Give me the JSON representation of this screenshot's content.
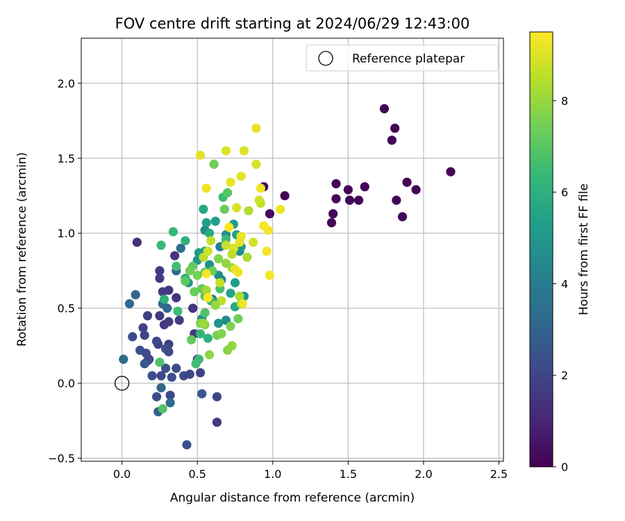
{
  "chart_data": {
    "type": "scatter",
    "title": "FOV centre drift starting at 2024/06/29 12:43:00",
    "xlabel": "Angular distance from reference (arcmin)",
    "ylabel": "Rotation from reference (arcmin)",
    "xlim": [
      -0.27,
      2.53
    ],
    "ylim": [
      -0.52,
      2.3
    ],
    "xticks": [
      0.0,
      0.5,
      1.0,
      1.5,
      2.0,
      2.5
    ],
    "xtick_labels": [
      "0.0",
      "0.5",
      "1.0",
      "1.5",
      "2.0",
      "2.5"
    ],
    "yticks": [
      -0.5,
      0.0,
      0.5,
      1.0,
      1.5,
      2.0
    ],
    "ytick_labels": [
      "−0.5",
      "0.0",
      "0.5",
      "1.0",
      "1.5",
      "2.0"
    ],
    "grid": true,
    "legend": {
      "placement": "top-right",
      "entries": [
        "Reference platepar"
      ]
    },
    "reference_point": {
      "x": 0.0,
      "y": 0.0
    },
    "colorbar": {
      "label": "Hours from first FF file",
      "range": [
        0,
        9.5
      ],
      "ticks": [
        0,
        2,
        4,
        6,
        8
      ],
      "tick_labels": [
        "0",
        "2",
        "4",
        "6",
        "8"
      ],
      "colormap": [
        "#440154",
        "#482878",
        "#3e4989",
        "#31688e",
        "#26828e",
        "#1f9e89",
        "#35b779",
        "#6ece58",
        "#b5de2b",
        "#fde725"
      ]
    },
    "points": [
      {
        "x": 1.74,
        "y": 1.83,
        "h": 0.1
      },
      {
        "x": 1.81,
        "y": 1.7,
        "h": 0.1
      },
      {
        "x": 1.79,
        "y": 1.62,
        "h": 0.1
      },
      {
        "x": 2.18,
        "y": 1.41,
        "h": 0.1
      },
      {
        "x": 1.89,
        "y": 1.34,
        "h": 0.1
      },
      {
        "x": 1.95,
        "y": 1.29,
        "h": 0.1
      },
      {
        "x": 1.61,
        "y": 1.31,
        "h": 0.1
      },
      {
        "x": 1.5,
        "y": 1.29,
        "h": 0.1
      },
      {
        "x": 1.42,
        "y": 1.33,
        "h": 0.1
      },
      {
        "x": 1.42,
        "y": 1.23,
        "h": 0.1
      },
      {
        "x": 1.51,
        "y": 1.22,
        "h": 0.1
      },
      {
        "x": 1.57,
        "y": 1.22,
        "h": 0.1
      },
      {
        "x": 1.82,
        "y": 1.22,
        "h": 0.1
      },
      {
        "x": 1.4,
        "y": 1.13,
        "h": 0.1
      },
      {
        "x": 1.39,
        "y": 1.07,
        "h": 0.1
      },
      {
        "x": 1.86,
        "y": 1.11,
        "h": 0.1
      },
      {
        "x": 1.08,
        "y": 1.25,
        "h": 0.1
      },
      {
        "x": 0.94,
        "y": 1.31,
        "h": 0.2
      },
      {
        "x": 0.98,
        "y": 1.13,
        "h": 0.3
      },
      {
        "x": 0.1,
        "y": 0.94,
        "h": 1.3
      },
      {
        "x": 0.35,
        "y": 0.85,
        "h": 1.4
      },
      {
        "x": 0.25,
        "y": 0.75,
        "h": 1.6
      },
      {
        "x": 0.25,
        "y": 0.7,
        "h": 1.6
      },
      {
        "x": 0.31,
        "y": 0.62,
        "h": 1.5
      },
      {
        "x": 0.27,
        "y": 0.61,
        "h": 1.7
      },
      {
        "x": 0.36,
        "y": 0.57,
        "h": 1.5
      },
      {
        "x": 0.25,
        "y": 0.45,
        "h": 1.6
      },
      {
        "x": 0.17,
        "y": 0.45,
        "h": 1.8
      },
      {
        "x": 0.31,
        "y": 0.41,
        "h": 1.7
      },
      {
        "x": 0.28,
        "y": 0.39,
        "h": 1.6
      },
      {
        "x": 0.38,
        "y": 0.42,
        "h": 1.7
      },
      {
        "x": 0.14,
        "y": 0.37,
        "h": 1.9
      },
      {
        "x": 0.15,
        "y": 0.32,
        "h": 2.0
      },
      {
        "x": 0.07,
        "y": 0.31,
        "h": 2.1
      },
      {
        "x": 0.31,
        "y": 0.26,
        "h": 1.8
      },
      {
        "x": 0.23,
        "y": 0.28,
        "h": 2.0
      },
      {
        "x": 0.24,
        "y": 0.26,
        "h": 2.0
      },
      {
        "x": 0.12,
        "y": 0.22,
        "h": 2.4
      },
      {
        "x": 0.16,
        "y": 0.2,
        "h": 2.2
      },
      {
        "x": 0.18,
        "y": 0.16,
        "h": 2.0
      },
      {
        "x": 0.17,
        "y": 0.15,
        "h": 2.1
      },
      {
        "x": 0.15,
        "y": 0.13,
        "h": 2.6
      },
      {
        "x": 0.29,
        "y": 0.23,
        "h": 2.4
      },
      {
        "x": 0.31,
        "y": 0.21,
        "h": 2.2
      },
      {
        "x": 0.29,
        "y": 0.1,
        "h": 2.4
      },
      {
        "x": 0.2,
        "y": 0.05,
        "h": 2.3
      },
      {
        "x": 0.26,
        "y": 0.05,
        "h": 2.1
      },
      {
        "x": 0.33,
        "y": 0.04,
        "h": 2.3
      },
      {
        "x": 0.36,
        "y": 0.1,
        "h": 2.2
      },
      {
        "x": 0.41,
        "y": 0.05,
        "h": 2.1
      },
      {
        "x": 0.45,
        "y": 0.06,
        "h": 2.0
      },
      {
        "x": 0.52,
        "y": 0.07,
        "h": 1.9
      },
      {
        "x": 0.5,
        "y": 0.16,
        "h": 1.8
      },
      {
        "x": 0.48,
        "y": 0.33,
        "h": 1.6
      },
      {
        "x": 0.47,
        "y": 0.5,
        "h": 1.5
      },
      {
        "x": 0.23,
        "y": -0.09,
        "h": 2.2
      },
      {
        "x": 0.32,
        "y": -0.08,
        "h": 2.1
      },
      {
        "x": 0.53,
        "y": -0.07,
        "h": 2.6
      },
      {
        "x": 0.63,
        "y": -0.09,
        "h": 2.0
      },
      {
        "x": 0.63,
        "y": -0.26,
        "h": 1.6
      },
      {
        "x": 0.43,
        "y": -0.41,
        "h": 2.3
      },
      {
        "x": 0.24,
        "y": -0.19,
        "h": 3.0
      },
      {
        "x": 0.26,
        "y": -0.03,
        "h": 3.1
      },
      {
        "x": 0.32,
        "y": -0.13,
        "h": 3.3
      },
      {
        "x": 0.01,
        "y": 0.16,
        "h": 3.3
      },
      {
        "x": 0.05,
        "y": 0.53,
        "h": 3.2
      },
      {
        "x": 0.09,
        "y": 0.59,
        "h": 3.1
      },
      {
        "x": 0.27,
        "y": 0.53,
        "h": 3.3
      },
      {
        "x": 0.3,
        "y": 0.5,
        "h": 3.1
      },
      {
        "x": 0.36,
        "y": 0.75,
        "h": 3.2
      },
      {
        "x": 0.39,
        "y": 0.9,
        "h": 3.4
      },
      {
        "x": 0.55,
        "y": 1.02,
        "h": 4.6
      },
      {
        "x": 0.56,
        "y": 1.07,
        "h": 5.3
      },
      {
        "x": 0.62,
        "y": 1.08,
        "h": 5.4
      },
      {
        "x": 0.54,
        "y": 1.16,
        "h": 5.6
      },
      {
        "x": 0.58,
        "y": 1.0,
        "h": 5.8
      },
      {
        "x": 0.55,
        "y": 0.88,
        "h": 5.5
      },
      {
        "x": 0.51,
        "y": 0.87,
        "h": 5.2
      },
      {
        "x": 0.5,
        "y": 0.82,
        "h": 4.9
      },
      {
        "x": 0.58,
        "y": 0.79,
        "h": 4.7
      },
      {
        "x": 0.64,
        "y": 0.72,
        "h": 4.8
      },
      {
        "x": 0.66,
        "y": 0.69,
        "h": 4.4
      },
      {
        "x": 0.65,
        "y": 0.91,
        "h": 4.0
      },
      {
        "x": 0.68,
        "y": 0.92,
        "h": 4.7
      },
      {
        "x": 0.69,
        "y": 0.99,
        "h": 4.6
      },
      {
        "x": 0.74,
        "y": 1.06,
        "h": 5.2
      },
      {
        "x": 0.76,
        "y": 0.99,
        "h": 5.4
      },
      {
        "x": 0.78,
        "y": 0.88,
        "h": 4.5
      },
      {
        "x": 0.79,
        "y": 0.91,
        "h": 5.0
      },
      {
        "x": 0.75,
        "y": 0.67,
        "h": 5.3
      },
      {
        "x": 0.72,
        "y": 0.6,
        "h": 5.5
      },
      {
        "x": 0.81,
        "y": 0.58,
        "h": 5.0
      },
      {
        "x": 0.75,
        "y": 0.51,
        "h": 5.7
      },
      {
        "x": 0.69,
        "y": 0.42,
        "h": 4.6
      },
      {
        "x": 0.64,
        "y": 0.4,
        "h": 4.9
      },
      {
        "x": 0.53,
        "y": 0.43,
        "h": 4.6
      },
      {
        "x": 0.6,
        "y": 0.56,
        "h": 4.2
      },
      {
        "x": 0.44,
        "y": 0.67,
        "h": 5.1
      },
      {
        "x": 0.42,
        "y": 0.95,
        "h": 6.1
      },
      {
        "x": 0.34,
        "y": 1.01,
        "h": 6.3
      },
      {
        "x": 0.26,
        "y": 0.92,
        "h": 6.4
      },
      {
        "x": 0.36,
        "y": 0.78,
        "h": 6.6
      },
      {
        "x": 0.42,
        "y": 0.7,
        "h": 6.2
      },
      {
        "x": 0.28,
        "y": 0.56,
        "h": 6.0
      },
      {
        "x": 0.37,
        "y": 0.48,
        "h": 6.5
      },
      {
        "x": 0.53,
        "y": 0.4,
        "h": 6.7
      },
      {
        "x": 0.51,
        "y": 0.16,
        "h": 6.4
      },
      {
        "x": 0.25,
        "y": 0.14,
        "h": 6.8
      },
      {
        "x": 0.27,
        "y": -0.17,
        "h": 6.9
      },
      {
        "x": 0.49,
        "y": 0.13,
        "h": 6.6
      },
      {
        "x": 0.52,
        "y": 0.33,
        "h": 6.3
      },
      {
        "x": 0.57,
        "y": 0.3,
        "h": 6.1
      },
      {
        "x": 0.55,
        "y": 0.47,
        "h": 6.8
      },
      {
        "x": 0.59,
        "y": 0.55,
        "h": 6.2
      },
      {
        "x": 0.65,
        "y": 0.63,
        "h": 6.7
      },
      {
        "x": 0.69,
        "y": 0.96,
        "h": 6.4
      },
      {
        "x": 0.67,
        "y": 1.24,
        "h": 6.5
      },
      {
        "x": 0.7,
        "y": 1.27,
        "h": 7.0
      },
      {
        "x": 0.68,
        "y": 1.16,
        "h": 7.3
      },
      {
        "x": 0.61,
        "y": 1.46,
        "h": 7.4
      },
      {
        "x": 0.47,
        "y": 0.78,
        "h": 7.2
      },
      {
        "x": 0.45,
        "y": 0.75,
        "h": 7.4
      },
      {
        "x": 0.42,
        "y": 0.68,
        "h": 7.1
      },
      {
        "x": 0.48,
        "y": 0.61,
        "h": 7.3
      },
      {
        "x": 0.5,
        "y": 0.72,
        "h": 7.5
      },
      {
        "x": 0.53,
        "y": 0.63,
        "h": 7.2
      },
      {
        "x": 0.55,
        "y": 0.58,
        "h": 7.0
      },
      {
        "x": 0.52,
        "y": 0.4,
        "h": 7.6
      },
      {
        "x": 0.55,
        "y": 0.39,
        "h": 7.8
      },
      {
        "x": 0.46,
        "y": 0.29,
        "h": 7.2
      },
      {
        "x": 0.58,
        "y": 0.19,
        "h": 7.9
      },
      {
        "x": 0.63,
        "y": 0.32,
        "h": 7.5
      },
      {
        "x": 0.66,
        "y": 0.33,
        "h": 7.7
      },
      {
        "x": 0.73,
        "y": 0.25,
        "h": 7.9
      },
      {
        "x": 0.7,
        "y": 0.22,
        "h": 7.8
      },
      {
        "x": 0.72,
        "y": 0.38,
        "h": 7.6
      },
      {
        "x": 0.77,
        "y": 0.43,
        "h": 7.4
      },
      {
        "x": 0.79,
        "y": 0.53,
        "h": 8.0
      },
      {
        "x": 0.78,
        "y": 0.58,
        "h": 8.3
      },
      {
        "x": 0.73,
        "y": 0.77,
        "h": 8.2
      },
      {
        "x": 0.69,
        "y": 0.8,
        "h": 7.9
      },
      {
        "x": 0.64,
        "y": 0.83,
        "h": 7.7
      },
      {
        "x": 0.6,
        "y": 0.75,
        "h": 7.3
      },
      {
        "x": 0.55,
        "y": 0.74,
        "h": 7.0
      },
      {
        "x": 0.54,
        "y": 0.84,
        "h": 8.5
      },
      {
        "x": 0.57,
        "y": 0.88,
        "h": 8.8
      },
      {
        "x": 0.59,
        "y": 0.95,
        "h": 8.6
      },
      {
        "x": 0.56,
        "y": 1.3,
        "h": 9.3
      },
      {
        "x": 0.52,
        "y": 1.52,
        "h": 9.1
      },
      {
        "x": 0.69,
        "y": 1.55,
        "h": 9.0
      },
      {
        "x": 0.81,
        "y": 1.55,
        "h": 9.0
      },
      {
        "x": 0.89,
        "y": 1.7,
        "h": 9.2
      },
      {
        "x": 0.89,
        "y": 1.46,
        "h": 8.9
      },
      {
        "x": 0.79,
        "y": 1.38,
        "h": 9.1
      },
      {
        "x": 0.72,
        "y": 1.34,
        "h": 9.2
      },
      {
        "x": 0.92,
        "y": 1.3,
        "h": 9.3
      },
      {
        "x": 0.92,
        "y": 1.2,
        "h": 8.6
      },
      {
        "x": 0.91,
        "y": 1.22,
        "h": 8.8
      },
      {
        "x": 0.84,
        "y": 1.15,
        "h": 8.4
      },
      {
        "x": 0.76,
        "y": 1.17,
        "h": 9.0
      },
      {
        "x": 1.05,
        "y": 1.16,
        "h": 9.3
      },
      {
        "x": 0.94,
        "y": 1.05,
        "h": 9.4
      },
      {
        "x": 0.97,
        "y": 1.02,
        "h": 9.4
      },
      {
        "x": 0.71,
        "y": 1.04,
        "h": 9.5
      },
      {
        "x": 0.79,
        "y": 0.98,
        "h": 9.2
      },
      {
        "x": 0.78,
        "y": 0.94,
        "h": 9.1
      },
      {
        "x": 0.87,
        "y": 0.94,
        "h": 8.9
      },
      {
        "x": 0.69,
        "y": 0.92,
        "h": 8.7
      },
      {
        "x": 0.74,
        "y": 0.9,
        "h": 9.0
      },
      {
        "x": 0.73,
        "y": 0.86,
        "h": 8.5
      },
      {
        "x": 0.83,
        "y": 0.84,
        "h": 8.3
      },
      {
        "x": 0.96,
        "y": 0.88,
        "h": 9.4
      },
      {
        "x": 0.75,
        "y": 0.76,
        "h": 9.2
      },
      {
        "x": 0.77,
        "y": 0.74,
        "h": 9.3
      },
      {
        "x": 0.98,
        "y": 0.72,
        "h": 9.4
      },
      {
        "x": 0.56,
        "y": 0.73,
        "h": 9.4
      },
      {
        "x": 0.65,
        "y": 0.67,
        "h": 8.7
      },
      {
        "x": 0.56,
        "y": 0.62,
        "h": 8.2
      },
      {
        "x": 0.57,
        "y": 0.57,
        "h": 9.5
      },
      {
        "x": 0.66,
        "y": 0.55,
        "h": 8.6
      },
      {
        "x": 0.62,
        "y": 0.52,
        "h": 8.0
      },
      {
        "x": 0.8,
        "y": 0.53,
        "h": 9.3
      },
      {
        "x": 0.54,
        "y": 0.4,
        "h": 8.1
      }
    ]
  }
}
